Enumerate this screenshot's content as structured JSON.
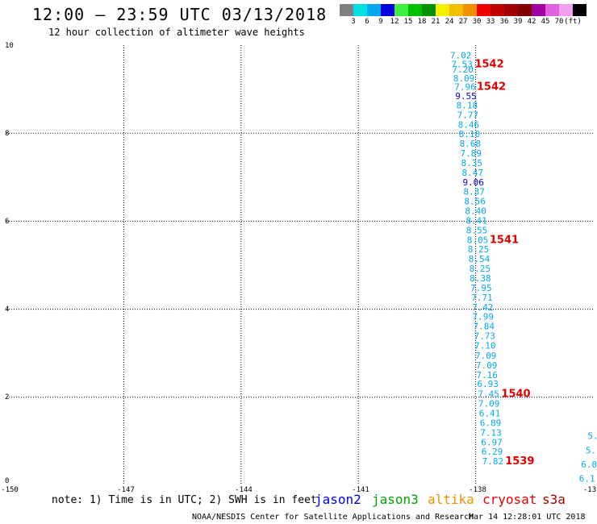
{
  "header": {
    "title": "12:00 – 23:59 UTC 03/13/2018",
    "subtitle": "12 hour collection of altimeter wave heights"
  },
  "colorbar": {
    "colors": [
      "#808080",
      "#00e0e0",
      "#00a8f0",
      "#0000e0",
      "#40f040",
      "#00c000",
      "#009000",
      "#f0f000",
      "#f0c000",
      "#f09000",
      "#f00000",
      "#c00000",
      "#a00000",
      "#800000",
      "#a000a0",
      "#e060e0",
      "#f0a0f0",
      "#000000"
    ],
    "labels": [
      "3",
      "6",
      "9",
      "12",
      "15",
      "18",
      "21",
      "24",
      "27",
      "30",
      "33",
      "36",
      "39",
      "42",
      "45",
      "70",
      "(ft)"
    ]
  },
  "axes": {
    "y_ticks": [
      "10",
      "8",
      "6",
      "4",
      "2",
      "0"
    ],
    "x_ticks": [
      "-150",
      "-147",
      "-144",
      "-141",
      "-138",
      "-13"
    ]
  },
  "chart_data": {
    "type": "scatter",
    "xlim": [
      -150,
      -135
    ],
    "ylim": [
      0,
      10
    ],
    "grid": true,
    "series": [
      {
        "name": "",
        "points": [
          {
            "x": -138.38,
            "y": 9.7,
            "v": "7.02"
          },
          {
            "x": -138.35,
            "y": 9.5,
            "v": "7.53"
          },
          {
            "x": -138.33,
            "y": 9.38,
            "v": "7.20"
          },
          {
            "x": -138.3,
            "y": 9.18,
            "v": "8.09"
          },
          {
            "x": -138.27,
            "y": 8.98,
            "v": "7.96"
          },
          {
            "x": -138.25,
            "y": 8.77,
            "v": "9.55"
          },
          {
            "x": -138.22,
            "y": 8.56,
            "v": "8.18"
          },
          {
            "x": -138.2,
            "y": 8.34,
            "v": "7.77"
          },
          {
            "x": -138.18,
            "y": 8.12,
            "v": "8.46"
          },
          {
            "x": -138.16,
            "y": 7.91,
            "v": "8.10"
          },
          {
            "x": -138.14,
            "y": 7.69,
            "v": "8.68"
          },
          {
            "x": -138.12,
            "y": 7.47,
            "v": "7.89"
          },
          {
            "x": -138.1,
            "y": 7.25,
            "v": "8.35"
          },
          {
            "x": -138.08,
            "y": 7.03,
            "v": "8.47"
          },
          {
            "x": -138.06,
            "y": 6.81,
            "v": "9.06"
          },
          {
            "x": -138.04,
            "y": 6.6,
            "v": "8.37"
          },
          {
            "x": -138.02,
            "y": 6.38,
            "v": "8.56"
          },
          {
            "x": -138.0,
            "y": 6.16,
            "v": "8.40"
          },
          {
            "x": -137.98,
            "y": 5.94,
            "v": "8.41"
          },
          {
            "x": -137.97,
            "y": 5.72,
            "v": "8.55"
          },
          {
            "x": -137.95,
            "y": 5.5,
            "v": "8.05"
          },
          {
            "x": -137.93,
            "y": 5.29,
            "v": "8.25"
          },
          {
            "x": -137.91,
            "y": 5.07,
            "v": "8.54"
          },
          {
            "x": -137.89,
            "y": 4.85,
            "v": "8.25"
          },
          {
            "x": -137.88,
            "y": 4.63,
            "v": "8.38"
          },
          {
            "x": -137.86,
            "y": 4.41,
            "v": "7.95"
          },
          {
            "x": -137.84,
            "y": 4.19,
            "v": "7.71"
          },
          {
            "x": -137.82,
            "y": 3.97,
            "v": "7.42"
          },
          {
            "x": -137.81,
            "y": 3.76,
            "v": "7.99"
          },
          {
            "x": -137.79,
            "y": 3.54,
            "v": "7.84"
          },
          {
            "x": -137.77,
            "y": 3.32,
            "v": "7.73"
          },
          {
            "x": -137.76,
            "y": 3.1,
            "v": "7.10"
          },
          {
            "x": -137.74,
            "y": 2.88,
            "v": "7.09"
          },
          {
            "x": -137.72,
            "y": 2.66,
            "v": "7.09"
          },
          {
            "x": -137.71,
            "y": 2.44,
            "v": "7.16"
          },
          {
            "x": -137.69,
            "y": 2.23,
            "v": "6.93"
          },
          {
            "x": -137.67,
            "y": 2.01,
            "v": "7.45"
          },
          {
            "x": -137.66,
            "y": 1.79,
            "v": "7.09"
          },
          {
            "x": -137.64,
            "y": 1.57,
            "v": "6.41"
          },
          {
            "x": -137.62,
            "y": 1.35,
            "v": "6.89"
          },
          {
            "x": -137.61,
            "y": 1.13,
            "v": "7.13"
          },
          {
            "x": -137.59,
            "y": 0.91,
            "v": "6.97"
          },
          {
            "x": -137.58,
            "y": 0.7,
            "v": "6.29"
          },
          {
            "x": -137.56,
            "y": 0.48,
            "v": "7.82"
          },
          {
            "x": -135.0,
            "y": 1.05,
            "v": "5."
          },
          {
            "x": -135.05,
            "y": 0.72,
            "v": "5."
          },
          {
            "x": -135.1,
            "y": 0.4,
            "v": "6.0"
          },
          {
            "x": -135.15,
            "y": 0.08,
            "v": "6.1"
          }
        ]
      }
    ],
    "pass_labels": [
      {
        "x": -137.65,
        "y": 9.5,
        "text": "1542"
      },
      {
        "x": -137.6,
        "y": 8.98,
        "text": "1542"
      },
      {
        "x": -137.27,
        "y": 5.5,
        "text": "1541"
      },
      {
        "x": -136.97,
        "y": 2.01,
        "text": "1540"
      },
      {
        "x": -136.87,
        "y": 0.48,
        "text": "1539"
      }
    ]
  },
  "legend": {
    "note": "note: 1) Time is in UTC; 2) SWH is in feet",
    "satellites": [
      {
        "name": "jason2",
        "color": "#0000e0"
      },
      {
        "name": "jason3",
        "color": "#00a000"
      },
      {
        "name": "altika",
        "color": "#f09000"
      },
      {
        "name": "cryosat",
        "color": "#e00000"
      },
      {
        "name": "s3a",
        "color": "#a00000"
      }
    ]
  },
  "footer": {
    "credit": "NOAA/NESDIS Center for Satellite Applications and Research",
    "timestamp": "Mar 14 12:28:01 UTC 2018"
  }
}
